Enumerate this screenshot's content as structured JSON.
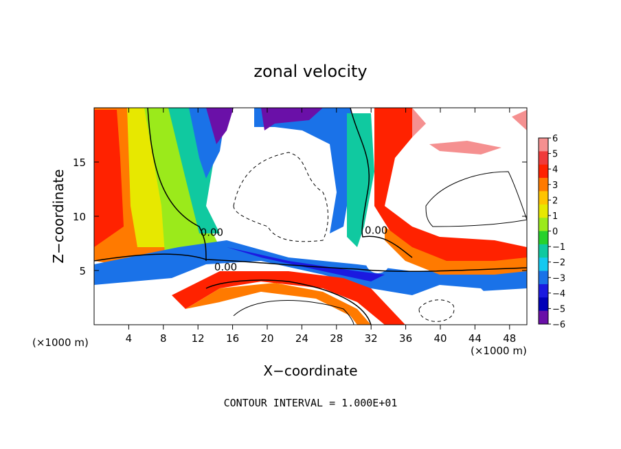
{
  "chart_data": {
    "type": "heatmap",
    "title": "zonal velocity",
    "xlabel": "X−coordinate",
    "ylabel": "Z−coordinate",
    "x_unit": "(×1000 m)",
    "y_unit": "(×1000 m)",
    "xlim": [
      0,
      50
    ],
    "ylim": [
      0,
      20
    ],
    "x_ticks": [
      4,
      8,
      12,
      16,
      20,
      24,
      28,
      32,
      36,
      40,
      44,
      48
    ],
    "y_ticks": [
      5,
      10,
      15
    ],
    "footer": "CONTOUR INTERVAL = 1.000E+01",
    "contour_labels": [
      {
        "text": "0.00",
        "x": 13.6,
        "y": 8.2
      },
      {
        "text": "0.00",
        "x": 15.2,
        "y": 5.0
      },
      {
        "text": "0.00",
        "x": 32.6,
        "y": 8.4
      }
    ],
    "colorbar": {
      "ticks": [
        "6",
        "5",
        "4",
        "3",
        "2",
        "1",
        "0",
        "−1",
        "−2",
        "−3",
        "−4",
        "−5",
        "−6"
      ],
      "colors": [
        "#f59090",
        "#f03b3b",
        "#ff2200",
        "#ff7a00",
        "#ffc400",
        "#e7e800",
        "#9bea1b",
        "#27d12c",
        "#10c9a0",
        "#14c9f0",
        "#1a72e8",
        "#1b1ae0",
        "#0000b8",
        "#6a10a8"
      ]
    },
    "fill_colors": {
      "zero": "#ffffff",
      "pos1": "#ff2200",
      "pos2": "#ff7a00",
      "pos3": "#e7e800",
      "pos4": "#9bea1b",
      "neg1": "#10c9a0",
      "neg2": "#1a72e8",
      "neg3": "#1b1ae0",
      "neg4": "#6a10a8",
      "pink": "#f59090"
    }
  }
}
